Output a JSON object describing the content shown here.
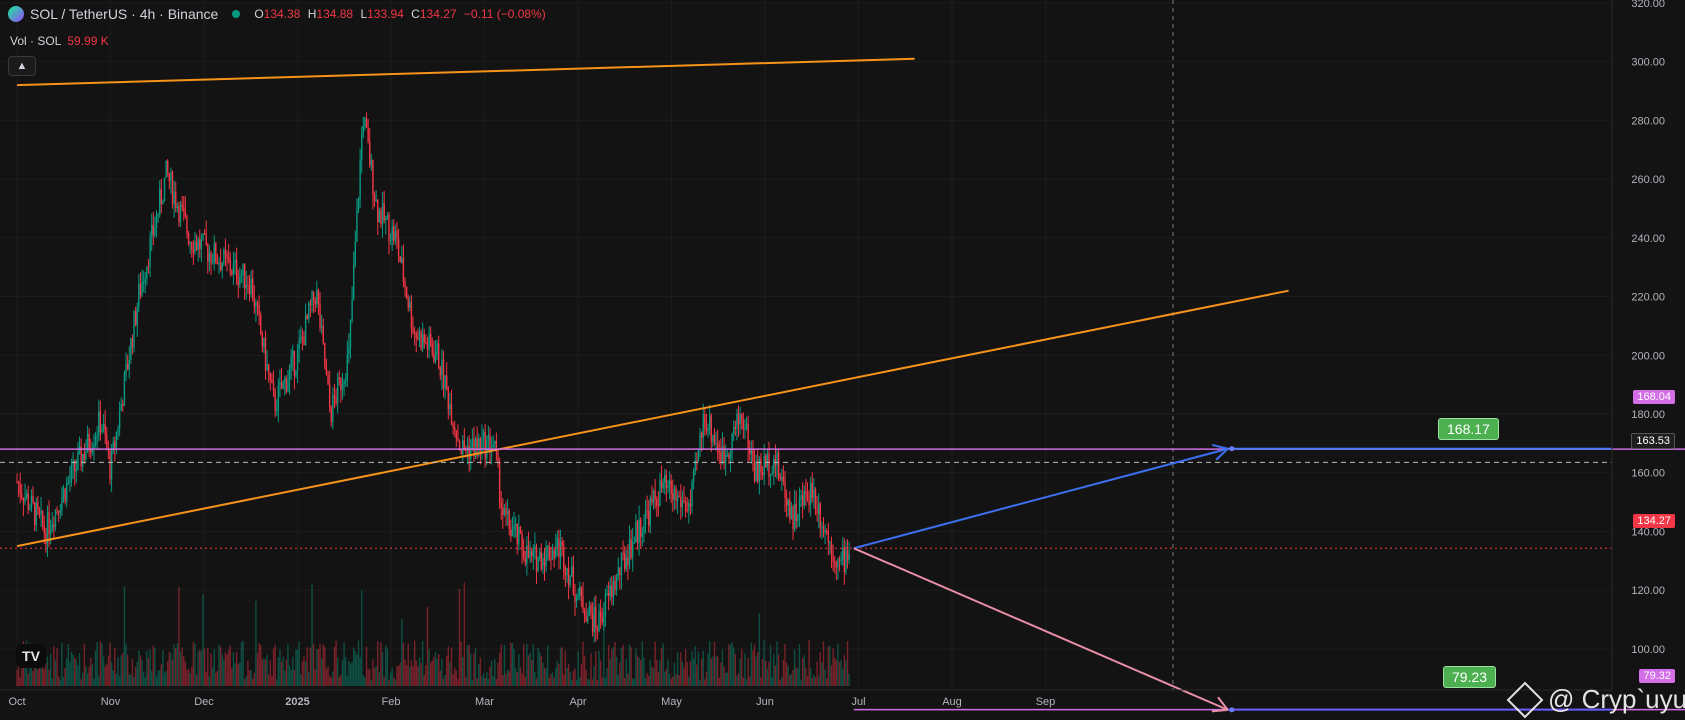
{
  "header": {
    "symbol": "SOL / TetherUS · 4h · Binance",
    "open_label": "O",
    "open": "134.38",
    "high_label": "H",
    "high": "134.88",
    "low_label": "L",
    "low": "133.94",
    "close_label": "C",
    "close": "134.27",
    "change": "−0.11 (−0.08%)"
  },
  "volume": {
    "label": "Vol · SOL",
    "value": "59.99 K"
  },
  "collapse_icon": "chevron-up-icon",
  "price_axis": [
    "320.00",
    "300.00",
    "280.00",
    "260.00",
    "240.00",
    "220.00",
    "200.00",
    "180.00",
    "160.00",
    "140.00",
    "120.00",
    "100.00"
  ],
  "time_axis": [
    "Oct",
    "Nov",
    "Dec",
    "2025",
    "Feb",
    "Mar",
    "Apr",
    "May",
    "Jun",
    "Jul",
    "Aug",
    "Sep"
  ],
  "price_labels": {
    "level_top": "168.04",
    "dashed": "163.53",
    "current": "134.27",
    "level_bottom": "79.32"
  },
  "targets": {
    "upper": "168.17",
    "lower": "79.23"
  },
  "watermark": "@ Cryp`uyu",
  "colors": {
    "background": "#131313",
    "up": "#089981",
    "down": "#f23645",
    "trendline": "#f7931a",
    "level": "#d36fe6",
    "up_arrow": "#3d6ff0",
    "down_arrow": "#e88fa6",
    "target_bg": "#4caf50"
  },
  "chart_data": {
    "type": "line",
    "title": "SOL / TetherUS · 4h · Binance",
    "xlabel": "",
    "ylabel": "",
    "ylim": [
      86,
      321
    ],
    "x": [
      "Oct",
      "Nov",
      "Dec",
      "2025",
      "Feb",
      "Mar",
      "Apr",
      "May",
      "Jun",
      "Jul",
      "Aug",
      "Sep"
    ],
    "series": [
      {
        "points": [
          [
            0,
            157
          ],
          [
            0.3,
            140
          ],
          [
            0.6,
            160
          ],
          [
            0.9,
            178
          ],
          [
            1.0,
            161
          ],
          [
            1.3,
            220
          ],
          [
            1.6,
            262
          ],
          [
            1.85,
            240
          ],
          [
            2.2,
            232
          ],
          [
            2.5,
            225
          ],
          [
            2.75,
            183
          ],
          [
            3.0,
            200
          ],
          [
            3.2,
            222
          ],
          [
            3.35,
            180
          ],
          [
            3.55,
            200
          ],
          [
            3.7,
            282
          ],
          [
            3.85,
            250
          ],
          [
            4.05,
            240
          ],
          [
            4.25,
            208
          ],
          [
            4.5,
            200
          ],
          [
            4.75,
            168
          ],
          [
            5.1,
            170
          ],
          [
            5.2,
            145
          ],
          [
            5.5,
            130
          ],
          [
            5.8,
            135
          ],
          [
            6.0,
            118
          ],
          [
            6.2,
            108
          ],
          [
            6.6,
            138
          ],
          [
            6.9,
            155
          ],
          [
            7.2,
            148
          ],
          [
            7.35,
            180
          ],
          [
            7.55,
            165
          ],
          [
            7.75,
            180
          ],
          [
            7.9,
            160
          ],
          [
            8.1,
            165
          ],
          [
            8.3,
            145
          ],
          [
            8.5,
            155
          ],
          [
            8.65,
            140
          ],
          [
            8.8,
            128
          ],
          [
            8.9,
            134
          ]
        ]
      }
    ],
    "trendlines": [
      {
        "from": [
          0,
          292
        ],
        "to": [
          9.6,
          301
        ]
      },
      {
        "from": [
          0,
          135
        ],
        "to": [
          13.6,
          222
        ]
      }
    ],
    "levels": [
      168.04,
      163.53,
      134.27,
      79.32
    ],
    "projections": [
      {
        "from": [
          8.95,
          134.27
        ],
        "to": [
          12.95,
          168.17
        ]
      },
      {
        "from": [
          8.95,
          134.27
        ],
        "to": [
          12.95,
          79.23
        ]
      }
    ]
  }
}
